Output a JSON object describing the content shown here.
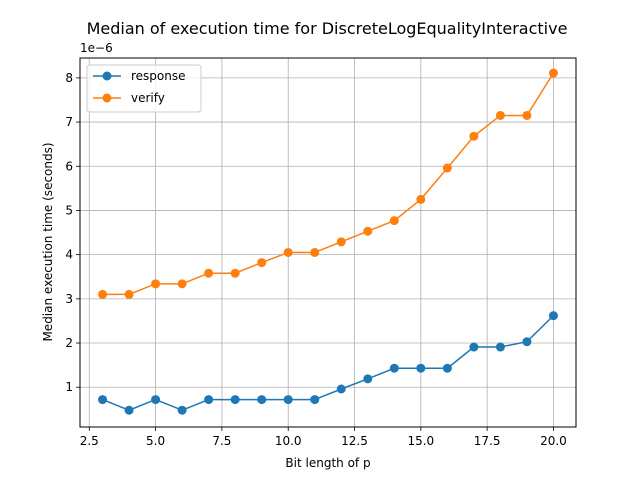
{
  "chart_data": {
    "type": "line",
    "title": "Median of execution time for DiscreteLogEqualityInteractive",
    "xlabel": "Bit length of p",
    "ylabel": "Median execution time (seconds)",
    "y_scale_label": "1e−6",
    "xlim": [
      2.15,
      20.85
    ],
    "ylim": [
      0.1,
      8.45
    ],
    "xticks": [
      2.5,
      5.0,
      7.5,
      10.0,
      12.5,
      15.0,
      17.5,
      20.0
    ],
    "xtick_labels": [
      "2.5",
      "5.0",
      "7.5",
      "10.0",
      "12.5",
      "15.0",
      "17.5",
      "20.0"
    ],
    "yticks": [
      1,
      2,
      3,
      4,
      5,
      6,
      7,
      8
    ],
    "ytick_labels": [
      "1",
      "2",
      "3",
      "4",
      "5",
      "6",
      "7",
      "8"
    ],
    "grid": true,
    "legend_position": "top-left",
    "x": [
      3,
      4,
      5,
      6,
      7,
      8,
      9,
      10,
      11,
      12,
      13,
      14,
      15,
      16,
      17,
      18,
      19,
      20
    ],
    "series": [
      {
        "name": "response",
        "color": "#1f77b4",
        "values": [
          0.72,
          0.48,
          0.72,
          0.48,
          0.72,
          0.72,
          0.72,
          0.72,
          0.72,
          0.96,
          1.19,
          1.43,
          1.43,
          1.43,
          1.91,
          1.91,
          2.03,
          2.62
        ]
      },
      {
        "name": "verify",
        "color": "#ff7f0e",
        "values": [
          3.1,
          3.1,
          3.34,
          3.34,
          3.58,
          3.58,
          3.82,
          4.05,
          4.05,
          4.29,
          4.53,
          4.77,
          5.25,
          5.96,
          6.68,
          7.15,
          7.15,
          8.11
        ]
      }
    ]
  }
}
